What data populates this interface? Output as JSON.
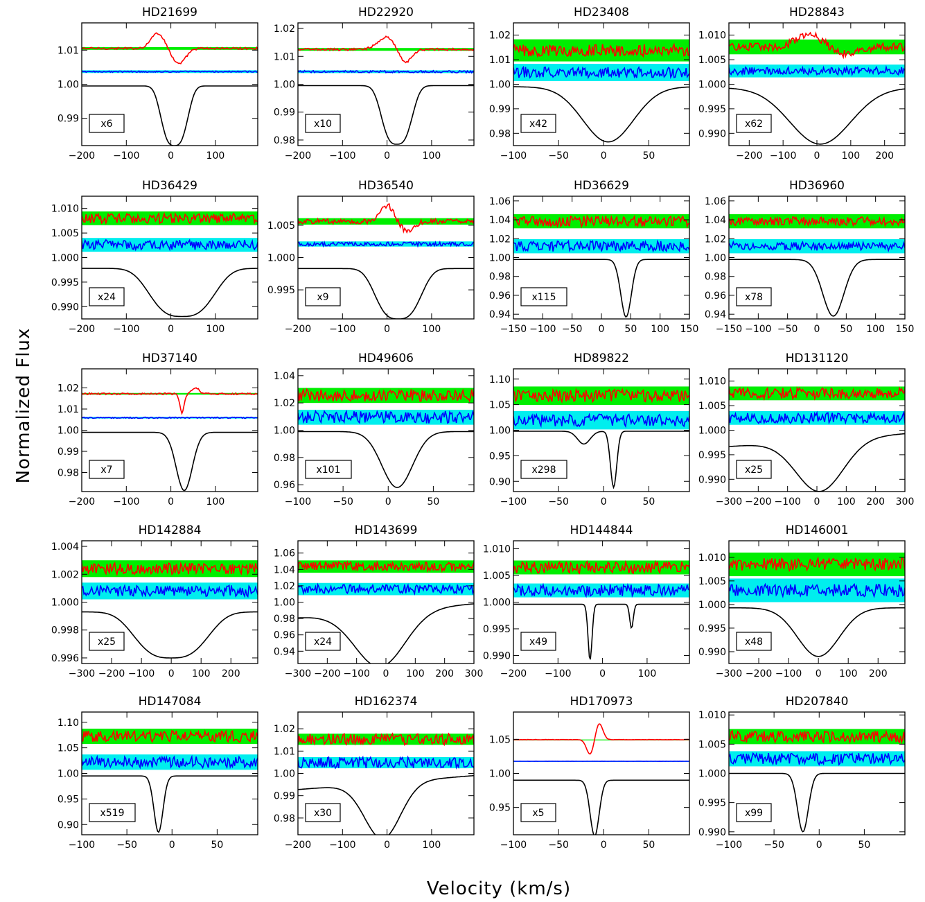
{
  "figure": {
    "ylabel": "Normalized Flux",
    "xlabel": "Velocity (km/s)",
    "colors": {
      "stokes_v": "#ff0000",
      "null": "#0000ff",
      "intensity": "#000000",
      "v_band": "#00ee00",
      "n_band": "#00eeee"
    }
  },
  "chart_data": [
    {
      "type": "line",
      "title": "HD21699",
      "multiplier": "x6",
      "xlim": [
        -200,
        195
      ],
      "ylim": [
        0.982,
        1.018
      ],
      "xticks": [
        -200,
        -100,
        0,
        100
      ],
      "yticks": [
        0.99,
        1.0,
        1.01
      ],
      "yprec": 2,
      "intensity": {
        "continuum": 0.9995,
        "lines": [
          {
            "center": 8,
            "depth": 0.0175,
            "width": 28,
            "shape": "box"
          }
        ]
      },
      "stokes_v": {
        "level": 1.0105,
        "band": 0.0004,
        "noise": 0.0003,
        "signal": [
          {
            "center": -30,
            "amp": 0.0045,
            "width": 15
          },
          {
            "center": 18,
            "amp": -0.0045,
            "width": 15
          }
        ]
      },
      "null": {
        "level": 1.0037,
        "band": 0.0004,
        "noise": 0.0002
      }
    },
    {
      "type": "line",
      "title": "HD22920",
      "multiplier": "x10",
      "xlim": [
        -200,
        195
      ],
      "ylim": [
        0.978,
        1.022
      ],
      "xticks": [
        -200,
        -100,
        0,
        100
      ],
      "yticks": [
        0.98,
        0.99,
        1.0,
        1.01,
        1.02
      ],
      "yprec": 2,
      "intensity": {
        "continuum": 0.9995,
        "lines": [
          {
            "center": 22,
            "depth": 0.021,
            "width": 32,
            "shape": "box"
          }
        ]
      },
      "stokes_v": {
        "level": 1.0125,
        "band": 0.0005,
        "noise": 0.0004,
        "signal": [
          {
            "center": 0,
            "amp": 0.0045,
            "width": 20
          },
          {
            "center": 40,
            "amp": -0.005,
            "width": 15
          }
        ]
      },
      "null": {
        "level": 1.0045,
        "band": 0.0005,
        "noise": 0.0004
      }
    },
    {
      "type": "line",
      "title": "HD23408",
      "multiplier": "x42",
      "xlim": [
        -100,
        95
      ],
      "ylim": [
        0.975,
        1.025
      ],
      "xticks": [
        -100,
        -50,
        0,
        50
      ],
      "yticks": [
        0.98,
        0.99,
        1.0,
        1.01,
        1.02
      ],
      "yprec": 2,
      "intensity": {
        "continuum": 0.999,
        "lines": [
          {
            "center": 5,
            "depth": 0.0225,
            "width": 28,
            "shape": "gauss"
          }
        ]
      },
      "stokes_v": {
        "level": 1.0138,
        "band": 0.0045,
        "noise": 0.0025,
        "signal": []
      },
      "null": {
        "level": 1.0048,
        "band": 0.0035,
        "noise": 0.0022
      }
    },
    {
      "type": "line",
      "title": "HD28843",
      "multiplier": "x62",
      "xlim": [
        -260,
        260
      ],
      "ylim": [
        0.9875,
        1.0125
      ],
      "xticks": [
        -200,
        -100,
        0,
        100,
        200
      ],
      "yticks": [
        0.99,
        0.995,
        1.0,
        1.005,
        1.01
      ],
      "yprec": 3,
      "intensity": {
        "continuum": 0.9993,
        "lines": [
          {
            "center": 10,
            "depth": 0.0115,
            "width": 90,
            "shape": "gauss"
          }
        ]
      },
      "stokes_v": {
        "level": 1.0076,
        "band": 0.0015,
        "noise": 0.0008,
        "signal": [
          {
            "center": -20,
            "amp": 0.0025,
            "width": 40
          },
          {
            "center": 80,
            "amp": -0.0015,
            "width": 40
          }
        ]
      },
      "null": {
        "level": 1.0027,
        "band": 0.0013,
        "noise": 0.0008
      }
    },
    {
      "type": "line",
      "title": "HD36429",
      "multiplier": "x24",
      "xlim": [
        -200,
        195
      ],
      "ylim": [
        0.9875,
        1.0125
      ],
      "xticks": [
        -200,
        -100,
        0,
        100
      ],
      "yticks": [
        0.99,
        0.995,
        1.0,
        1.005,
        1.01
      ],
      "yprec": 3,
      "intensity": {
        "continuum": 0.9978,
        "lines": [
          {
            "center": 25,
            "depth": 0.0098,
            "width": 68,
            "shape": "box"
          }
        ]
      },
      "stokes_v": {
        "level": 1.008,
        "band": 0.0014,
        "noise": 0.001,
        "signal": []
      },
      "null": {
        "level": 1.0026,
        "band": 0.0014,
        "noise": 0.001
      }
    },
    {
      "type": "line",
      "title": "HD36540",
      "multiplier": "x9",
      "xlim": [
        -200,
        195
      ],
      "ylim": [
        0.9905,
        1.0095
      ],
      "xticks": [
        -200,
        -100,
        0,
        100
      ],
      "yticks": [
        0.995,
        1.0,
        1.005
      ],
      "yprec": 3,
      "intensity": {
        "continuum": 0.9983,
        "lines": [
          {
            "center": 25,
            "depth": 0.0078,
            "width": 48,
            "shape": "box"
          }
        ]
      },
      "stokes_v": {
        "level": 1.0056,
        "band": 0.0005,
        "noise": 0.0004,
        "signal": [
          {
            "center": 0,
            "amp": 0.0025,
            "width": 15
          },
          {
            "center": 45,
            "amp": -0.0015,
            "width": 15
          }
        ]
      },
      "null": {
        "level": 1.0021,
        "band": 0.0004,
        "noise": 0.0003
      }
    },
    {
      "type": "line",
      "title": "HD36629",
      "multiplier": "x115",
      "xlim": [
        -150,
        150
      ],
      "ylim": [
        0.935,
        1.065
      ],
      "xticks": [
        -150,
        -100,
        -50,
        0,
        50,
        100,
        150
      ],
      "yticks": [
        0.94,
        0.96,
        0.98,
        1.0,
        1.02,
        1.04,
        1.06
      ],
      "yprec": 2,
      "intensity": {
        "continuum": 0.998,
        "lines": [
          {
            "center": 42,
            "depth": 0.061,
            "width": 9,
            "shape": "gauss"
          }
        ]
      },
      "stokes_v": {
        "level": 1.0385,
        "band": 0.0075,
        "noise": 0.0055,
        "signal": []
      },
      "null": {
        "level": 1.012,
        "band": 0.0075,
        "noise": 0.0055
      }
    },
    {
      "type": "line",
      "title": "HD36960",
      "multiplier": "x78",
      "xlim": [
        -150,
        150
      ],
      "ylim": [
        0.935,
        1.065
      ],
      "xticks": [
        -150,
        -100,
        -50,
        0,
        50,
        100,
        150
      ],
      "yticks": [
        0.94,
        0.96,
        0.98,
        1.0,
        1.02,
        1.04,
        1.06
      ],
      "yprec": 2,
      "intensity": {
        "continuum": 0.998,
        "lines": [
          {
            "center": 28,
            "depth": 0.06,
            "width": 18,
            "shape": "gauss"
          }
        ]
      },
      "stokes_v": {
        "level": 1.0385,
        "band": 0.0075,
        "noise": 0.0045,
        "signal": []
      },
      "null": {
        "level": 1.012,
        "band": 0.0075,
        "noise": 0.0045
      }
    },
    {
      "type": "line",
      "title": "HD37140",
      "multiplier": "x7",
      "xlim": [
        -200,
        195
      ],
      "ylim": [
        0.971,
        1.029
      ],
      "xticks": [
        -200,
        -100,
        0,
        100
      ],
      "yticks": [
        0.98,
        0.99,
        1.0,
        1.01,
        1.02
      ],
      "yprec": 2,
      "intensity": {
        "continuum": 0.999,
        "lines": [
          {
            "center": 30,
            "depth": 0.0275,
            "width": 18,
            "shape": "gauss"
          }
        ]
      },
      "stokes_v": {
        "level": 1.0172,
        "band": 0.0004,
        "noise": 0.0004,
        "signal": [
          {
            "center": 25,
            "amp": -0.009,
            "width": 5
          },
          {
            "center": 55,
            "amp": 0.003,
            "width": 8
          }
        ]
      },
      "null": {
        "level": 1.0059,
        "band": 0.0004,
        "noise": 0.0003
      }
    },
    {
      "type": "line",
      "title": "HD49606",
      "multiplier": "x101",
      "xlim": [
        -100,
        95
      ],
      "ylim": [
        0.955,
        1.045
      ],
      "xticks": [
        -100,
        -50,
        0,
        50
      ],
      "yticks": [
        0.96,
        0.98,
        1.0,
        1.02,
        1.04
      ],
      "yprec": 2,
      "intensity": {
        "continuum": 0.999,
        "lines": [
          {
            "center": 10,
            "depth": 0.041,
            "width": 17,
            "shape": "gauss"
          }
        ]
      },
      "stokes_v": {
        "level": 1.0255,
        "band": 0.0055,
        "noise": 0.0045,
        "signal": []
      },
      "null": {
        "level": 1.0095,
        "band": 0.0055,
        "noise": 0.0045
      }
    },
    {
      "type": "line",
      "title": "HD89822",
      "multiplier": "x298",
      "xlim": [
        -100,
        95
      ],
      "ylim": [
        0.88,
        1.12
      ],
      "xticks": [
        -100,
        -50,
        0,
        50
      ],
      "yticks": [
        0.9,
        0.95,
        1.0,
        1.05,
        1.1
      ],
      "yprec": 2,
      "intensity": {
        "continuum": 0.998,
        "lines": [
          {
            "center": -22,
            "depth": 0.025,
            "width": 7,
            "shape": "gauss"
          },
          {
            "center": 11,
            "depth": 0.11,
            "width": 3.5,
            "shape": "gauss"
          }
        ]
      },
      "stokes_v": {
        "level": 1.0675,
        "band": 0.018,
        "noise": 0.012,
        "signal": []
      },
      "null": {
        "level": 1.0195,
        "band": 0.018,
        "noise": 0.012
      }
    },
    {
      "type": "line",
      "title": "HD131120",
      "multiplier": "x25",
      "xlim": [
        -300,
        300
      ],
      "ylim": [
        0.9875,
        1.0125
      ],
      "xticks": [
        -300,
        -200,
        -100,
        0,
        100,
        200,
        300
      ],
      "yticks": [
        0.99,
        0.995,
        1.0,
        1.005,
        1.01
      ],
      "yprec": 3,
      "intensity": {
        "continuum": 0.9993,
        "slope": true,
        "lines": [
          {
            "center": 10,
            "depth": 0.0105,
            "width": 80,
            "shape": "gauss"
          }
        ]
      },
      "stokes_v": {
        "level": 1.0075,
        "band": 0.0014,
        "noise": 0.0011,
        "signal": []
      },
      "null": {
        "level": 1.0025,
        "band": 0.0014,
        "noise": 0.0011
      }
    },
    {
      "type": "line",
      "title": "HD142884",
      "multiplier": "x25",
      "xlim": [
        -300,
        290
      ],
      "ylim": [
        0.9956,
        1.0044
      ],
      "xticks": [
        -300,
        -200,
        -100,
        0,
        100,
        200
      ],
      "yticks": [
        0.996,
        0.998,
        1.0,
        1.002,
        1.004
      ],
      "yprec": 3,
      "intensity": {
        "continuum": 0.9993,
        "lines": [
          {
            "center": 0,
            "depth": 0.0033,
            "width": 115,
            "shape": "box"
          }
        ]
      },
      "stokes_v": {
        "level": 1.0024,
        "band": 0.0006,
        "noise": 0.0004,
        "signal": []
      },
      "null": {
        "level": 1.0008,
        "band": 0.0006,
        "noise": 0.0004
      }
    },
    {
      "type": "line",
      "title": "HD143699",
      "multiplier": "x24",
      "xlim": [
        -300,
        300
      ],
      "ylim": [
        0.925,
        1.075
      ],
      "xticks": [
        -300,
        -200,
        -100,
        0,
        100,
        200,
        300
      ],
      "yticks": [
        0.94,
        0.96,
        0.98,
        1.0,
        1.02,
        1.04,
        1.06
      ],
      "yprec": 2,
      "intensity": {
        "continuum": 0.998,
        "slope": true,
        "lines": [
          {
            "center": -20,
            "depth": 0.068,
            "width": 85,
            "shape": "gauss"
          }
        ]
      },
      "stokes_v": {
        "level": 1.0435,
        "band": 0.0075,
        "noise": 0.0055,
        "signal": []
      },
      "null": {
        "level": 1.016,
        "band": 0.0075,
        "noise": 0.0055
      }
    },
    {
      "type": "line",
      "title": "HD144844",
      "multiplier": "x49",
      "xlim": [
        -200,
        195
      ],
      "ylim": [
        0.9885,
        1.0115
      ],
      "xticks": [
        -200,
        -100,
        0,
        100
      ],
      "yticks": [
        0.99,
        0.995,
        1.0,
        1.005,
        1.01
      ],
      "yprec": 3,
      "intensity": {
        "continuum": 0.9996,
        "lines": [
          {
            "center": -28,
            "depth": 0.0105,
            "width": 4.5,
            "shape": "gauss"
          },
          {
            "center": 65,
            "depth": 0.0045,
            "width": 4,
            "shape": "gauss"
          }
        ]
      },
      "stokes_v": {
        "level": 1.0065,
        "band": 0.0013,
        "noise": 0.0011,
        "signal": []
      },
      "null": {
        "level": 1.0022,
        "band": 0.0013,
        "noise": 0.0011
      }
    },
    {
      "type": "line",
      "title": "HD146001",
      "multiplier": "x48",
      "xlim": [
        -300,
        290
      ],
      "ylim": [
        0.9875,
        1.0135
      ],
      "xticks": [
        -300,
        -200,
        -100,
        0,
        100,
        200
      ],
      "yticks": [
        0.99,
        0.995,
        1.0,
        1.005,
        1.01
      ],
      "yprec": 3,
      "intensity": {
        "continuum": 0.9993,
        "lines": [
          {
            "center": 0,
            "depth": 0.0103,
            "width": 70,
            "shape": "gauss"
          }
        ]
      },
      "stokes_v": {
        "level": 1.0085,
        "band": 0.0025,
        "noise": 0.0013,
        "signal": []
      },
      "null": {
        "level": 1.003,
        "band": 0.0025,
        "noise": 0.0013
      }
    },
    {
      "type": "line",
      "title": "HD147084",
      "multiplier": "x519",
      "xlim": [
        -100,
        95
      ],
      "ylim": [
        0.88,
        1.12
      ],
      "xticks": [
        -100,
        -50,
        0,
        50
      ],
      "yticks": [
        0.9,
        0.95,
        1.0,
        1.05,
        1.1
      ],
      "yprec": 2,
      "intensity": {
        "continuum": 0.995,
        "lines": [
          {
            "center": -15,
            "depth": 0.11,
            "width": 5,
            "shape": "gauss"
          }
        ]
      },
      "stokes_v": {
        "level": 1.0725,
        "band": 0.015,
        "noise": 0.011,
        "signal": []
      },
      "null": {
        "level": 1.022,
        "band": 0.015,
        "noise": 0.011
      }
    },
    {
      "type": "line",
      "title": "HD162374",
      "multiplier": "x30",
      "xlim": [
        -200,
        195
      ],
      "ylim": [
        0.9725,
        1.0275
      ],
      "xticks": [
        -200,
        -100,
        0,
        100
      ],
      "yticks": [
        0.98,
        0.99,
        1.0,
        1.01,
        1.02
      ],
      "yprec": 2,
      "intensity": {
        "continuum": 0.999,
        "slope": true,
        "lines": [
          {
            "center": -10,
            "depth": 0.025,
            "width": 40,
            "shape": "gauss"
          }
        ]
      },
      "stokes_v": {
        "level": 1.0153,
        "band": 0.0025,
        "noise": 0.0025,
        "signal": []
      },
      "null": {
        "level": 1.0048,
        "band": 0.0025,
        "noise": 0.0025
      }
    },
    {
      "type": "line",
      "title": "HD170973",
      "multiplier": "x5",
      "xlim": [
        -100,
        95
      ],
      "ylim": [
        0.91,
        1.09
      ],
      "xticks": [
        -100,
        -50,
        0,
        50
      ],
      "yticks": [
        0.95,
        1.0,
        1.05
      ],
      "yprec": 2,
      "intensity": {
        "continuum": 0.99,
        "lines": [
          {
            "center": -10,
            "depth": 0.082,
            "width": 5,
            "shape": "gauss"
          }
        ]
      },
      "stokes_v": {
        "level": 1.0495,
        "band": 0.0002,
        "noise": 0.0002,
        "signal": [
          {
            "center": -15,
            "amp": -0.022,
            "width": 4
          },
          {
            "center": -5,
            "amp": 0.024,
            "width": 4
          }
        ]
      },
      "null": {
        "level": 1.0178,
        "band": 0.0002,
        "noise": 0.0001
      }
    },
    {
      "type": "line",
      "title": "HD207840",
      "multiplier": "x99",
      "xlim": [
        -100,
        95
      ],
      "ylim": [
        0.9895,
        1.0105
      ],
      "xticks": [
        -100,
        -50,
        0,
        50
      ],
      "yticks": [
        0.99,
        0.995,
        1.0,
        1.005,
        1.01
      ],
      "yprec": 3,
      "intensity": {
        "continuum": 1.0,
        "lines": [
          {
            "center": -18,
            "depth": 0.01,
            "width": 6,
            "shape": "gauss"
          }
        ]
      },
      "stokes_v": {
        "level": 1.0063,
        "band": 0.0013,
        "noise": 0.001,
        "signal": []
      },
      "null": {
        "level": 1.0025,
        "band": 0.0013,
        "noise": 0.001
      }
    }
  ]
}
